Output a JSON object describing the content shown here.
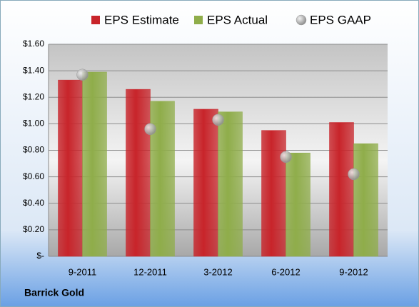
{
  "chart_data": {
    "type": "bar",
    "title": "Barrick Gold",
    "categories": [
      "9-2011",
      "12-2011",
      "3-2012",
      "6-2012",
      "9-2012"
    ],
    "series": [
      {
        "name": "EPS Estimate",
        "color": "#c8242a",
        "values": [
          1.33,
          1.26,
          1.11,
          0.95,
          1.01
        ]
      },
      {
        "name": "EPS Actual",
        "color": "#8fad4a",
        "values": [
          1.39,
          1.17,
          1.09,
          0.78,
          0.85
        ]
      },
      {
        "name": "EPS GAAP",
        "color": "#a8a8a8",
        "type": "scatter",
        "values": [
          1.37,
          0.96,
          1.03,
          0.75,
          0.62
        ]
      }
    ],
    "ylim": [
      0,
      1.6
    ],
    "yticks": [
      {
        "value": 0,
        "label": "$-"
      },
      {
        "value": 0.2,
        "label": "$0.20"
      },
      {
        "value": 0.4,
        "label": "$0.40"
      },
      {
        "value": 0.6,
        "label": "$0.60"
      },
      {
        "value": 0.8,
        "label": "$0.80"
      },
      {
        "value": 1.0,
        "label": "$1.00"
      },
      {
        "value": 1.2,
        "label": "$1.20"
      },
      {
        "value": 1.4,
        "label": "$1.40"
      },
      {
        "value": 1.6,
        "label": "$1.60"
      }
    ],
    "grid": true,
    "legend": "top"
  }
}
